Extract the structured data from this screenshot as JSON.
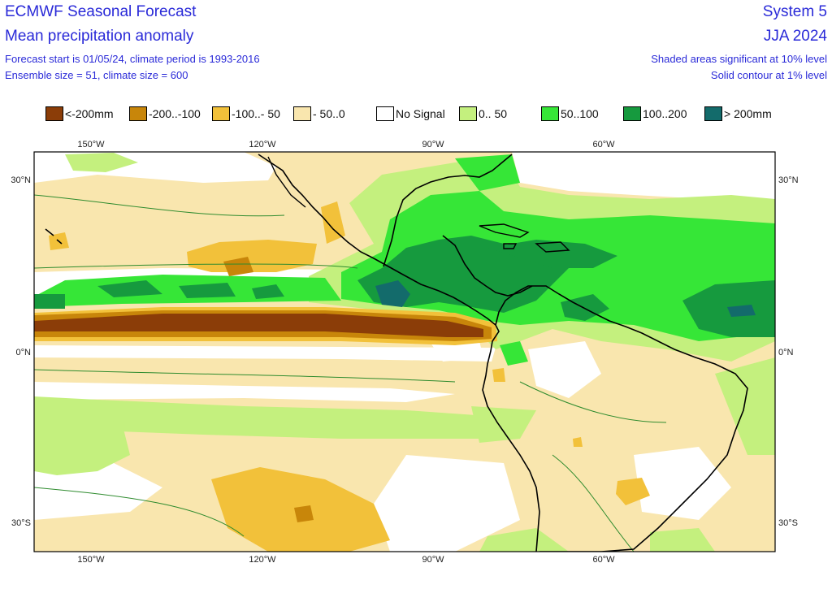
{
  "header": {
    "title": "ECMWF Seasonal Forecast",
    "subtitle": "Mean precipitation anomaly",
    "info1": "Forecast start is 01/05/24, climate period is 1993-2016",
    "info2": "Ensemble size = 51, climate size = 600",
    "system": "System 5",
    "season": "JJA 2024",
    "note1": "Shaded areas significant at 10% level",
    "note2": "Solid contour at 1% level"
  },
  "legend": [
    {
      "label": "<-200mm",
      "color": "#8b3d08"
    },
    {
      "label": "-200..-100",
      "color": "#c8860a"
    },
    {
      "label": "-100..- 50",
      "color": "#f2c13a"
    },
    {
      "label": "- 50..0",
      "color": "#f9e6ae"
    },
    {
      "label": "No Signal",
      "color": "#ffffff"
    },
    {
      "label": "0.. 50",
      "color": "#c4f07e"
    },
    {
      "label": "50..100",
      "color": "#36e637"
    },
    {
      "label": "100..200",
      "color": "#169a3e"
    },
    {
      "label": "> 200mm",
      "color": "#136b6b"
    }
  ],
  "axes": {
    "lon_labels": [
      "150°W",
      "120°W",
      "90°W",
      "60°W"
    ],
    "lat_labels": [
      "30°N",
      "0°N",
      "30°S"
    ]
  }
}
